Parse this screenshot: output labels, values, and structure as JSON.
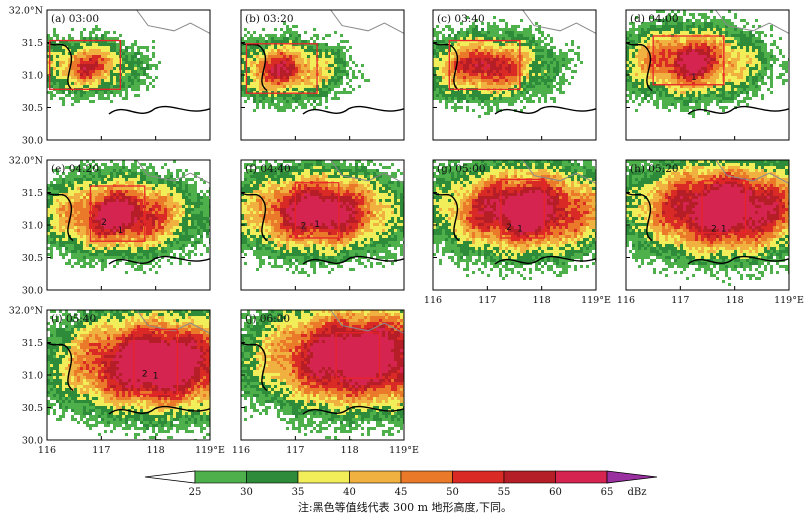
{
  "chart_data": {
    "type": "heatmap",
    "value_unit": "dBz",
    "x_ticks": [
      "116",
      "117",
      "118",
      "119°E"
    ],
    "y_ticks": [
      "32.0°N",
      "31.5",
      "31.0",
      "30.5",
      "30.0"
    ],
    "xlim": [
      116,
      119
    ],
    "ylim": [
      30,
      32
    ],
    "colorbar": {
      "levels": [
        25,
        30,
        35,
        40,
        45,
        50,
        55,
        60,
        65
      ],
      "colors": [
        "#4db04a",
        "#2e8b3a",
        "#f2ee5a",
        "#f0b140",
        "#ea7a2a",
        "#d92a25",
        "#b51e26",
        "#d4244f",
        "#9a2fa0"
      ],
      "unit_label": "dBz"
    },
    "note": "注:黑色等值线代表 300 m 地形高度,下同。",
    "panels": [
      {
        "label": "(a) 03:00",
        "box": {
          "lon": [
            116.05,
            117.35
          ],
          "lat": [
            30.78,
            31.53
          ]
        },
        "markers": [],
        "intensity": 0.8
      },
      {
        "label": "(b) 03:20",
        "box": {
          "lon": [
            116.1,
            117.4
          ],
          "lat": [
            30.72,
            31.48
          ]
        },
        "markers": [],
        "intensity": 0.9
      },
      {
        "label": "(c) 03:40",
        "box": {
          "lon": [
            116.3,
            117.6
          ],
          "lat": [
            30.78,
            31.53
          ]
        },
        "markers": [],
        "intensity": 1.0
      },
      {
        "label": "(d) 04:00",
        "box": {
          "lon": [
            116.5,
            117.8
          ],
          "lat": [
            30.85,
            31.6
          ]
        },
        "markers": [
          {
            "text": "1",
            "lon": 117.25,
            "lat": 30.92
          }
        ],
        "intensity": 1.1
      },
      {
        "label": "(e) 04:20",
        "box": {
          "lon": [
            116.8,
            117.8
          ],
          "lat": [
            30.75,
            31.6
          ]
        },
        "markers": [
          {
            "text": "2",
            "lon": 117.05,
            "lat": 31.0
          },
          {
            "text": "1",
            "lon": 117.35,
            "lat": 30.88
          }
        ],
        "intensity": 1.25
      },
      {
        "label": "(f) 04:40",
        "box": {
          "lon": [
            117.0,
            117.8
          ],
          "lat": [
            30.8,
            31.65
          ]
        },
        "markers": [
          {
            "text": "2",
            "lon": 117.15,
            "lat": 30.95
          },
          {
            "text": "1",
            "lon": 117.4,
            "lat": 30.97
          }
        ],
        "intensity": 1.35
      },
      {
        "label": "(g) 05:00",
        "box": {
          "lon": [
            117.25,
            118.05
          ],
          "lat": [
            30.8,
            31.7
          ]
        },
        "markers": [
          {
            "text": "2",
            "lon": 117.4,
            "lat": 30.92
          },
          {
            "text": "1",
            "lon": 117.6,
            "lat": 30.9
          }
        ],
        "intensity": 1.45
      },
      {
        "label": "(h) 05:20",
        "box": {
          "lon": [
            117.4,
            118.2
          ],
          "lat": [
            30.88,
            31.68
          ]
        },
        "markers": [
          {
            "text": "2",
            "lon": 117.62,
            "lat": 30.9
          },
          {
            "text": "1",
            "lon": 117.8,
            "lat": 30.9
          }
        ],
        "intensity": 1.55
      },
      {
        "label": "(i) 05:40",
        "box": {
          "lon": [
            117.6,
            118.4
          ],
          "lat": [
            30.7,
            31.7
          ]
        },
        "markers": [
          {
            "text": "2",
            "lon": 117.8,
            "lat": 30.98
          },
          {
            "text": "1",
            "lon": 118.0,
            "lat": 30.95
          }
        ],
        "intensity": 1.6
      },
      {
        "label": "(j) 06:00",
        "box": {
          "lon": [
            117.75,
            118.55
          ],
          "lat": [
            30.95,
            31.65
          ]
        },
        "markers": [],
        "intensity": 1.6
      }
    ]
  }
}
